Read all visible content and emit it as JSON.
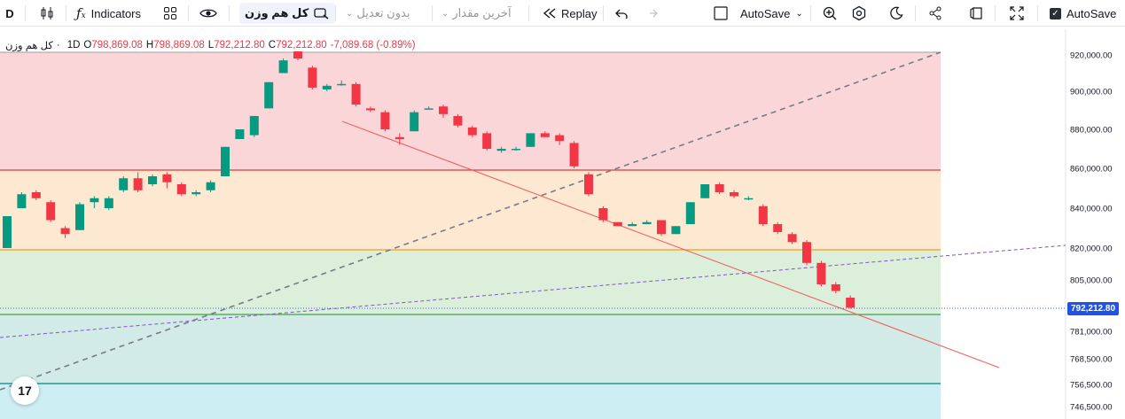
{
  "toolbar": {
    "interval": "D",
    "indicators_label": "Indicators",
    "symbol_search_label": "کل هم وزن",
    "adjustment_label": "بدون تعدیل",
    "value_label": "آخرین مقدار",
    "replay_label": "Replay",
    "autosave_label": "AutoSave",
    "autosave_checkbox_label": "AutoSave"
  },
  "legend": {
    "symbol": "کل هم وزن",
    "interval": "1D",
    "open_key": "O",
    "open": "798,869.08",
    "high_key": "H",
    "high": "798,869.08",
    "low_key": "L",
    "low": "792,212.80",
    "close_key": "C",
    "close": "792,212.80",
    "change": "-7,089.68 (-0.89%)"
  },
  "last_price_label": "792,212.80",
  "logo_text": "17",
  "colors": {
    "up": "#089981",
    "down": "#f23645",
    "zone_red": "#fbd5d8",
    "zone_orange": "#fde6cc",
    "zone_green": "#d9eed8",
    "zone_teal": "#cfe9e5",
    "zone_cyan": "#c8eef2"
  },
  "chart_data": {
    "type": "candlestick",
    "y_ticks": [
      "920,000.00",
      "900,000.00",
      "880,000.00",
      "860,000.00",
      "840,000.00",
      "820,000.00",
      "805,000.00",
      "792,212.80",
      "781,000.00",
      "768,500.00",
      "756,500.00",
      "746,500.00"
    ],
    "candles": [
      {
        "o": 820000,
        "h": 836000,
        "l": 820000,
        "c": 836000
      },
      {
        "o": 840000,
        "h": 848000,
        "l": 840000,
        "c": 847000
      },
      {
        "o": 848000,
        "h": 849000,
        "l": 844000,
        "c": 845000
      },
      {
        "o": 843000,
        "h": 844000,
        "l": 833000,
        "c": 834000
      },
      {
        "o": 830000,
        "h": 831000,
        "l": 825000,
        "c": 827000
      },
      {
        "o": 829000,
        "h": 843000,
        "l": 829000,
        "c": 842000
      },
      {
        "o": 843000,
        "h": 846000,
        "l": 840000,
        "c": 845000
      },
      {
        "o": 840000,
        "h": 846000,
        "l": 839000,
        "c": 845000
      },
      {
        "o": 849000,
        "h": 856000,
        "l": 848000,
        "c": 855000
      },
      {
        "o": 855000,
        "h": 858000,
        "l": 848000,
        "c": 849000
      },
      {
        "o": 852000,
        "h": 857000,
        "l": 851000,
        "c": 856000
      },
      {
        "o": 857000,
        "h": 858000,
        "l": 850000,
        "c": 853000
      },
      {
        "o": 852000,
        "h": 853000,
        "l": 846000,
        "c": 847000
      },
      {
        "o": 847000,
        "h": 849000,
        "l": 846000,
        "c": 848000
      },
      {
        "o": 849000,
        "h": 854000,
        "l": 848000,
        "c": 853000
      },
      {
        "o": 856000,
        "h": 871000,
        "l": 856000,
        "c": 871000
      },
      {
        "o": 875000,
        "h": 880000,
        "l": 875000,
        "c": 880000
      },
      {
        "o": 877000,
        "h": 887000,
        "l": 876000,
        "c": 887000
      },
      {
        "o": 891000,
        "h": 905000,
        "l": 891000,
        "c": 905000
      },
      {
        "o": 910000,
        "h": 918000,
        "l": 910000,
        "c": 917000
      },
      {
        "o": 922000,
        "h": 922000,
        "l": 917000,
        "c": 918000
      },
      {
        "o": 913000,
        "h": 914000,
        "l": 901000,
        "c": 902000
      },
      {
        "o": 901000,
        "h": 904000,
        "l": 900000,
        "c": 903000
      },
      {
        "o": 904000,
        "h": 906000,
        "l": 903000,
        "c": 904000
      },
      {
        "o": 904000,
        "h": 905000,
        "l": 892000,
        "c": 893000
      },
      {
        "o": 891000,
        "h": 892000,
        "l": 889000,
        "c": 890000
      },
      {
        "o": 889000,
        "h": 890000,
        "l": 879000,
        "c": 880000
      },
      {
        "o": 876000,
        "h": 878000,
        "l": 872000,
        "c": 875000
      },
      {
        "o": 879000,
        "h": 890000,
        "l": 879000,
        "c": 889000
      },
      {
        "o": 891000,
        "h": 892000,
        "l": 891000,
        "c": 891000
      },
      {
        "o": 892000,
        "h": 893000,
        "l": 886000,
        "c": 888000
      },
      {
        "o": 887000,
        "h": 888000,
        "l": 881000,
        "c": 882000
      },
      {
        "o": 881000,
        "h": 882000,
        "l": 876000,
        "c": 877000
      },
      {
        "o": 878000,
        "h": 879000,
        "l": 869000,
        "c": 870000
      },
      {
        "o": 869000,
        "h": 871000,
        "l": 868000,
        "c": 870000
      },
      {
        "o": 870000,
        "h": 871000,
        "l": 869000,
        "c": 870000
      },
      {
        "o": 871000,
        "h": 878000,
        "l": 871000,
        "c": 878000
      },
      {
        "o": 878000,
        "h": 879000,
        "l": 876000,
        "c": 876000
      },
      {
        "o": 877000,
        "h": 878000,
        "l": 872000,
        "c": 874000
      },
      {
        "o": 873000,
        "h": 874000,
        "l": 860000,
        "c": 861000
      },
      {
        "o": 857000,
        "h": 858000,
        "l": 846000,
        "c": 847000
      },
      {
        "o": 840000,
        "h": 841000,
        "l": 833000,
        "c": 834000
      },
      {
        "o": 833000,
        "h": 833000,
        "l": 831000,
        "c": 831000
      },
      {
        "o": 831000,
        "h": 833000,
        "l": 831000,
        "c": 832000
      },
      {
        "o": 832000,
        "h": 834000,
        "l": 832000,
        "c": 833000
      },
      {
        "o": 834000,
        "h": 834000,
        "l": 826000,
        "c": 827000
      },
      {
        "o": 827000,
        "h": 831000,
        "l": 827000,
        "c": 831000
      },
      {
        "o": 832000,
        "h": 843000,
        "l": 832000,
        "c": 843000
      },
      {
        "o": 845000,
        "h": 852000,
        "l": 845000,
        "c": 852000
      },
      {
        "o": 852000,
        "h": 853000,
        "l": 847000,
        "c": 848000
      },
      {
        "o": 848000,
        "h": 849000,
        "l": 845000,
        "c": 846000
      },
      {
        "o": 845000,
        "h": 846000,
        "l": 844000,
        "c": 845000
      },
      {
        "o": 841000,
        "h": 842000,
        "l": 831000,
        "c": 832000
      },
      {
        "o": 832000,
        "h": 833000,
        "l": 827000,
        "c": 828000
      },
      {
        "o": 827000,
        "h": 828000,
        "l": 822000,
        "c": 823000
      },
      {
        "o": 823000,
        "h": 824000,
        "l": 812000,
        "c": 813000
      },
      {
        "o": 813000,
        "h": 814000,
        "l": 802000,
        "c": 803000
      },
      {
        "o": 803000,
        "h": 804000,
        "l": 799000,
        "c": 800000
      },
      {
        "o": 797000,
        "h": 798000,
        "l": 792000,
        "c": 792500
      }
    ]
  }
}
